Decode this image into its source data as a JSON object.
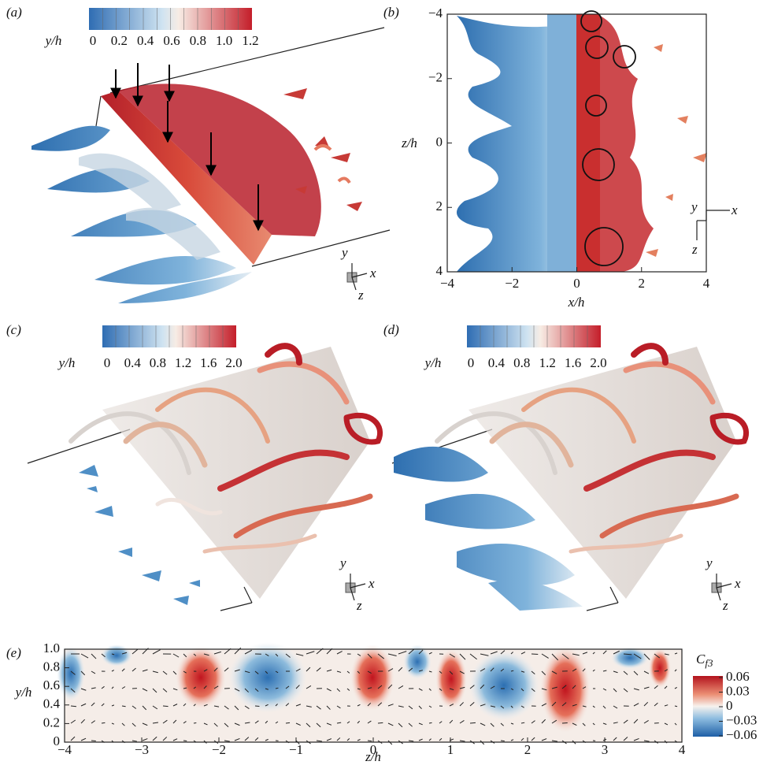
{
  "panels": {
    "a": {
      "label": "(a)",
      "colorbar": {
        "label": "y/h",
        "ticks": [
          "0",
          "0.2",
          "0.4",
          "0.6",
          "0.8",
          "1.0",
          "1.2"
        ]
      },
      "triad": {
        "y": "y",
        "x": "x",
        "z": "z"
      }
    },
    "b": {
      "label": "(b)",
      "xlabel": "x/h",
      "ylabel": "z/h",
      "xticks": [
        {
          "value": -4,
          "label": "−4"
        },
        {
          "value": -2,
          "label": "−2"
        },
        0,
        2,
        4
      ],
      "yticks": [
        {
          "value": -4,
          "label": "−4"
        },
        {
          "value": -2,
          "label": "−2"
        },
        0,
        2,
        4
      ],
      "triad": {
        "y": "y",
        "x": "x",
        "z": "z"
      }
    },
    "c": {
      "label": "(c)",
      "colorbar": {
        "label": "y/h",
        "ticks": [
          "0",
          "0.4",
          "0.8",
          "1.2",
          "1.6",
          "2.0"
        ]
      },
      "triad": {
        "y": "y",
        "x": "x",
        "z": "z"
      }
    },
    "d": {
      "label": "(d)",
      "colorbar": {
        "label": "y/h",
        "ticks": [
          "0",
          "0.4",
          "0.8",
          "1.2",
          "1.6",
          "2.0"
        ]
      },
      "triad": {
        "y": "y",
        "x": "x",
        "z": "z"
      }
    },
    "e": {
      "label": "(e)",
      "xlabel": "z/h",
      "ylabel": "y/h",
      "colorbar_title": "C",
      "colorbar_subscript": "f3",
      "colorbar_ticks": [
        0.06,
        0.03,
        0,
        {
          "value": -0.03,
          "label": "−0.03"
        },
        {
          "value": -0.06,
          "label": "−0.06"
        }
      ],
      "xticks": [
        {
          "value": -4,
          "label": "−4"
        },
        {
          "value": -3,
          "label": "−3"
        },
        {
          "value": -2,
          "label": "−2"
        },
        {
          "value": -1,
          "label": "−1"
        },
        0,
        1,
        2,
        3,
        4
      ],
      "yticks": [
        0,
        0.2,
        0.4,
        0.6,
        0.8,
        {
          "value": 1,
          "label": "1.0"
        }
      ]
    }
  }
}
